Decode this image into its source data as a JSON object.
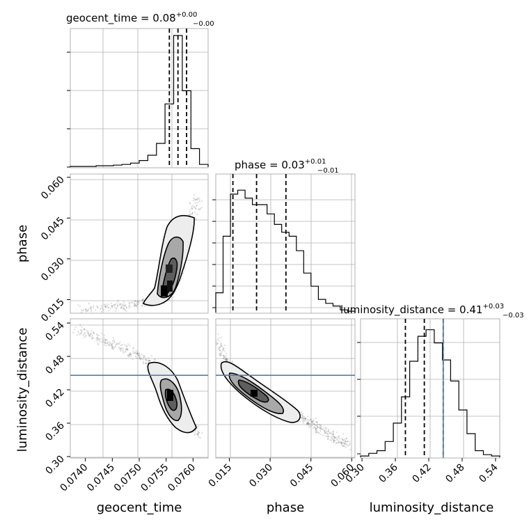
{
  "chart_data": {
    "type": "corner",
    "parameters": [
      "geocent_time",
      "phase",
      "luminosity_distance"
    ],
    "titles": [
      {
        "param": "geocent_time",
        "prefix": "geocent_time = 0.08",
        "plus": "+0.00",
        "minus": "−0.00"
      },
      {
        "param": "phase",
        "prefix": "phase = 0.03",
        "plus": "+0.01",
        "minus": "−0.01"
      },
      {
        "param": "luminosity_distance",
        "prefix": "luminosity_distance = 0.41",
        "plus": "+0.03",
        "minus": "−0.03"
      }
    ],
    "axis_labels": {
      "geocent_time": "geocent_time",
      "phase": "phase",
      "luminosity_distance": "luminosity_distance"
    },
    "ranges": {
      "geocent_time": [
        0.07372,
        0.07628
      ],
      "phase": [
        0.01,
        0.0612
      ],
      "luminosity_distance": [
        0.2974,
        0.5476
      ]
    },
    "ticks": {
      "geocent_time": {
        "values": [
          0.074,
          0.0745,
          0.075,
          0.0755,
          0.076
        ],
        "labels": [
          "0.0740",
          "0.0745",
          "0.0750",
          "0.0755",
          "0.0760"
        ]
      },
      "phase": {
        "values": [
          0.015,
          0.03,
          0.045,
          0.06
        ],
        "labels": [
          "0.015",
          "0.030",
          "0.045",
          "0.060"
        ]
      },
      "luminosity_distance": {
        "values": [
          0.3,
          0.36,
          0.42,
          0.48,
          0.54
        ],
        "labels": [
          "0.30",
          "0.36",
          "0.42",
          "0.48",
          "0.54"
        ]
      }
    },
    "quantiles": {
      "geocent_time": [
        0.07556,
        0.07572,
        0.07588
      ],
      "phase": [
        0.0163,
        0.025,
        0.0358
      ],
      "luminosity_distance": [
        0.378,
        0.412,
        0.446
      ]
    },
    "truth": {
      "luminosity_distance": 0.446
    },
    "histograms": {
      "geocent_time": [
        0.005,
        0.005,
        0.005,
        0.01,
        0.01,
        0.015,
        0.02,
        0.03,
        0.05,
        0.09,
        0.18,
        0.48,
        1.0,
        0.58,
        0.14,
        0.02
      ],
      "phase": [
        0.15,
        0.58,
        0.9,
        0.93,
        0.87,
        0.82,
        0.82,
        0.75,
        0.67,
        0.61,
        0.58,
        0.47,
        0.3,
        0.2,
        0.1,
        0.07,
        0.05,
        0.02,
        0.01
      ],
      "luminosity_distance": [
        0.01,
        0.03,
        0.05,
        0.12,
        0.26,
        0.46,
        0.73,
        0.92,
        0.97,
        0.87,
        0.74,
        0.58,
        0.36,
        0.18,
        0.05,
        0.02,
        0.01
      ]
    },
    "scatter_ridges": {
      "geocent_time_vs_phase": [
        [
          0.0739,
          0.0115
        ],
        [
          0.0745,
          0.0123
        ],
        [
          0.075,
          0.0133
        ],
        [
          0.0754,
          0.0145
        ],
        [
          0.0756,
          0.018
        ],
        [
          0.0757,
          0.024
        ],
        [
          0.0758,
          0.032
        ],
        [
          0.0759,
          0.041
        ],
        [
          0.0761,
          0.053
        ]
      ],
      "geocent_time_vs_luminosity_distance": [
        [
          0.0738,
          0.53
        ],
        [
          0.0742,
          0.514
        ],
        [
          0.0746,
          0.498
        ],
        [
          0.075,
          0.48
        ],
        [
          0.0754,
          0.458
        ],
        [
          0.0756,
          0.43
        ],
        [
          0.0757,
          0.4
        ],
        [
          0.0759,
          0.37
        ],
        [
          0.0761,
          0.34
        ]
      ],
      "phase_vs_luminosity_distance": [
        [
          0.0105,
          0.51
        ],
        [
          0.014,
          0.47
        ],
        [
          0.018,
          0.445
        ],
        [
          0.025,
          0.42
        ],
        [
          0.033,
          0.395
        ],
        [
          0.042,
          0.368
        ],
        [
          0.05,
          0.345
        ],
        [
          0.059,
          0.32
        ]
      ]
    },
    "grid": true,
    "truth_color": "#4682b4",
    "density_color": "#000000"
  }
}
